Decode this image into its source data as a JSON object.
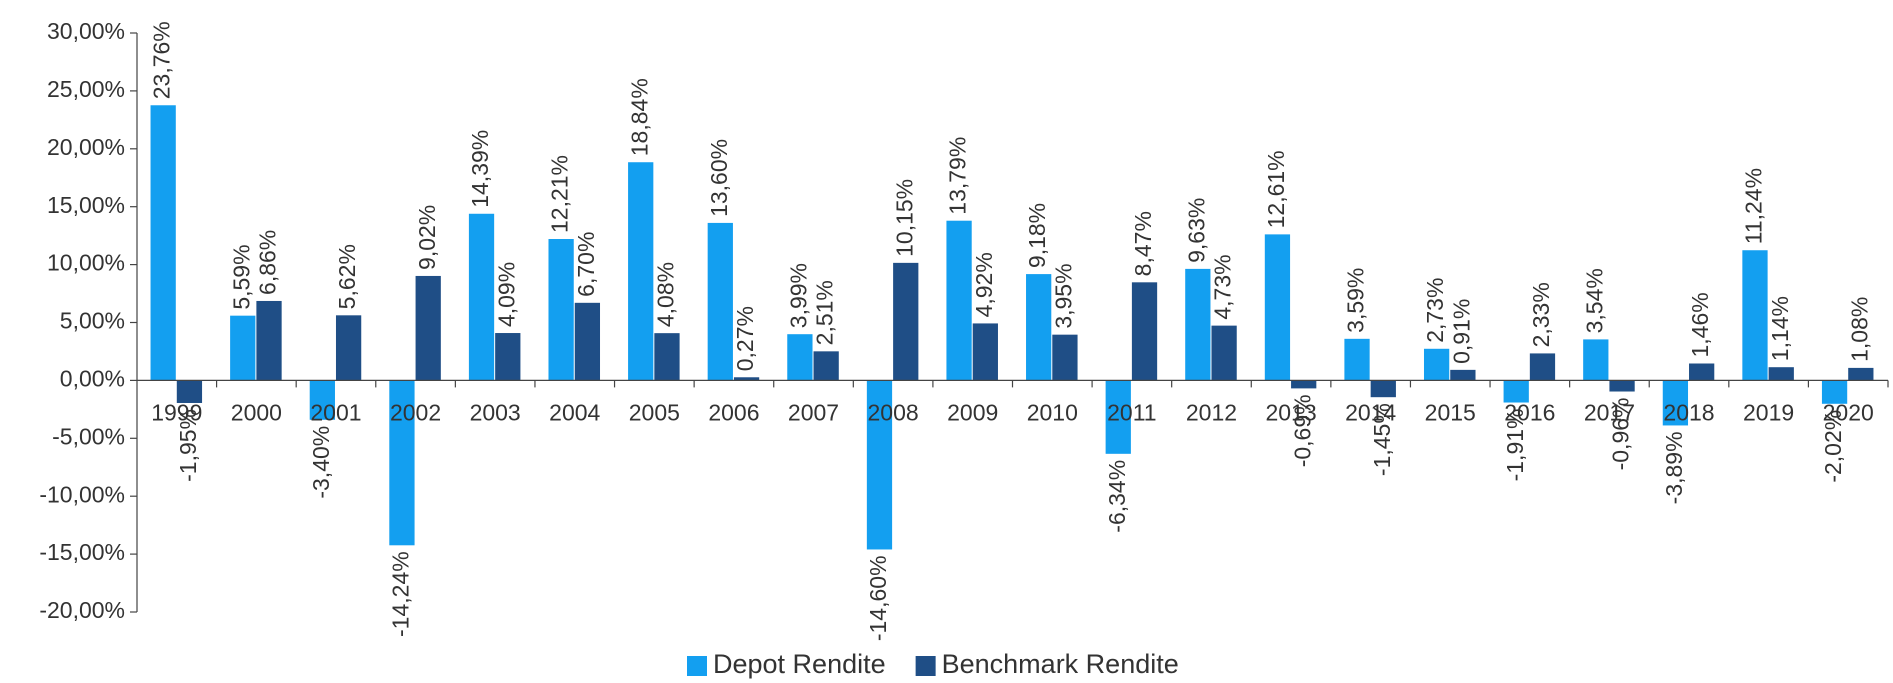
{
  "chart_data": {
    "type": "bar",
    "categories": [
      "1999",
      "2000",
      "2001",
      "2002",
      "2003",
      "2004",
      "2005",
      "2006",
      "2007",
      "2008",
      "2009",
      "2010",
      "2011",
      "2012",
      "2013",
      "2014",
      "2015",
      "2016",
      "2017",
      "2018",
      "2019",
      "2020"
    ],
    "series": [
      {
        "name": "Depot Rendite",
        "color": "#139ff0",
        "values": [
          23.76,
          5.59,
          -3.4,
          -14.24,
          14.39,
          12.21,
          18.84,
          13.6,
          3.99,
          -14.6,
          13.79,
          9.18,
          -6.34,
          9.63,
          12.61,
          3.59,
          2.73,
          -1.91,
          3.54,
          -3.89,
          11.24,
          -2.02
        ],
        "value_labels": [
          "23,76%",
          "5,59%",
          "-3,40%",
          "-14,24%",
          "14,39%",
          "12,21%",
          "18,84%",
          "13,60%",
          "3,99%",
          "-14,60%",
          "13,79%",
          "9,18%",
          "-6,34%",
          "9,63%",
          "12,61%",
          "3,59%",
          "2,73%",
          "-1,91%",
          "3,54%",
          "-3,89%",
          "11,24%",
          "-2,02%"
        ]
      },
      {
        "name": "Benchmark Rendite",
        "color": "#1f4e86",
        "values": [
          -1.95,
          6.86,
          5.62,
          9.02,
          4.09,
          6.7,
          4.08,
          0.27,
          2.51,
          10.15,
          4.92,
          3.95,
          8.47,
          4.73,
          -0.69,
          -1.45,
          0.91,
          2.33,
          -0.96,
          1.46,
          1.14,
          1.08
        ],
        "value_labels": [
          "-1,95%",
          "6,86%",
          "5,62%",
          "9,02%",
          "4,09%",
          "6,70%",
          "4,08%",
          "0,27%",
          "2,51%",
          "10,15%",
          "4,92%",
          "3,95%",
          "8,47%",
          "4,73%",
          "-0,69%",
          "-1,45%",
          "0,91%",
          "2,33%",
          "-0,96%",
          "1,46%",
          "1,14%",
          "1,08%"
        ]
      }
    ],
    "ylim": [
      -20,
      30
    ],
    "yticks": [
      {
        "value": -20,
        "label": "-20,00%"
      },
      {
        "value": -15,
        "label": "-15,00%"
      },
      {
        "value": -10,
        "label": "-10,00%"
      },
      {
        "value": -5,
        "label": "-5,00%"
      },
      {
        "value": 0,
        "label": "0,00%"
      },
      {
        "value": 5,
        "label": "5,00%"
      },
      {
        "value": 10,
        "label": "10,00%"
      },
      {
        "value": 15,
        "label": "15,00%"
      },
      {
        "value": 20,
        "label": "20,00%"
      },
      {
        "value": 25,
        "label": "25,00%"
      },
      {
        "value": 30,
        "label": "30,00%"
      }
    ],
    "legend": "bottom"
  }
}
